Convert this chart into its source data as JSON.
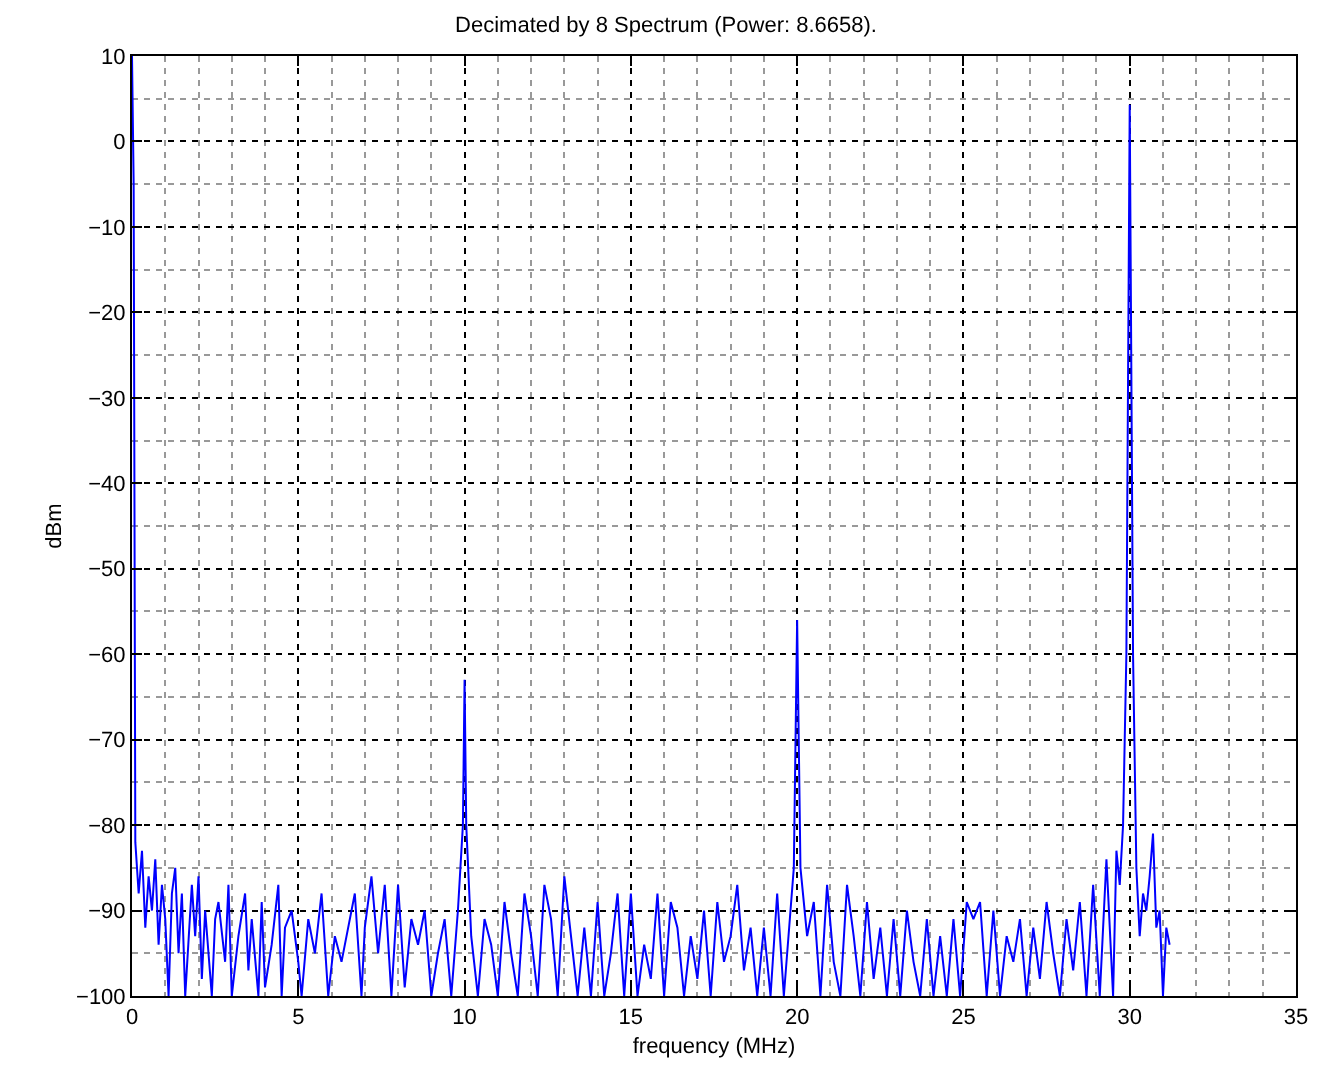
{
  "chart_data": {
    "type": "line",
    "title": "Decimated by 8 Spectrum (Power: 8.6658).",
    "xlabel": "frequency (MHz)",
    "ylabel": "dBm",
    "xlim": [
      0,
      35
    ],
    "xticks": [
      0,
      5,
      10,
      15,
      20,
      25,
      30,
      35
    ],
    "ylim": [
      -100,
      10
    ],
    "yticks": [
      -100,
      -90,
      -80,
      -70,
      -60,
      -50,
      -40,
      -30,
      -20,
      -10,
      0,
      10
    ],
    "grid": true,
    "line_style": "solid",
    "marker": "none",
    "series": [
      {
        "color": "#0000ff",
        "x": [
          0,
          0.05,
          0.1,
          0.2,
          0.3,
          0.4,
          0.5,
          0.6,
          0.7,
          0.8,
          0.9,
          1.0,
          1.1,
          1.2,
          1.3,
          1.4,
          1.5,
          1.6,
          1.8,
          1.9,
          2.0,
          2.1,
          2.2,
          2.4,
          2.5,
          2.6,
          2.8,
          2.9,
          3.0,
          3.2,
          3.4,
          3.5,
          3.6,
          3.8,
          3.9,
          4.0,
          4.2,
          4.4,
          4.5,
          4.6,
          4.8,
          5.0,
          5.1,
          5.3,
          5.5,
          5.7,
          5.9,
          6.1,
          6.3,
          6.5,
          6.7,
          6.9,
          7.0,
          7.2,
          7.4,
          7.6,
          7.8,
          8.0,
          8.2,
          8.4,
          8.6,
          8.8,
          9.0,
          9.2,
          9.4,
          9.6,
          9.8,
          9.95,
          10.0,
          10.05,
          10.2,
          10.4,
          10.6,
          10.8,
          11.0,
          11.2,
          11.4,
          11.6,
          11.8,
          12.0,
          12.2,
          12.4,
          12.6,
          12.8,
          13.0,
          13.2,
          13.4,
          13.6,
          13.8,
          14.0,
          14.2,
          14.4,
          14.6,
          14.8,
          15.0,
          15.2,
          15.4,
          15.6,
          15.8,
          16.0,
          16.2,
          16.4,
          16.6,
          16.8,
          17.0,
          17.2,
          17.4,
          17.6,
          17.8,
          18.0,
          18.2,
          18.4,
          18.6,
          18.8,
          19.0,
          19.2,
          19.4,
          19.6,
          19.9,
          20.0,
          20.1,
          20.3,
          20.5,
          20.7,
          20.9,
          21.1,
          21.3,
          21.5,
          21.7,
          21.9,
          22.1,
          22.3,
          22.5,
          22.7,
          22.9,
          23.1,
          23.3,
          23.5,
          23.7,
          23.9,
          24.1,
          24.3,
          24.5,
          24.7,
          24.9,
          25.1,
          25.3,
          25.5,
          25.7,
          25.9,
          26.1,
          26.3,
          26.5,
          26.7,
          26.9,
          27.1,
          27.3,
          27.5,
          27.7,
          27.9,
          28.1,
          28.3,
          28.5,
          28.7,
          28.9,
          29.1,
          29.3,
          29.5,
          29.6,
          29.7,
          29.8,
          29.9,
          30.0,
          30.1,
          30.2,
          30.3,
          30.4,
          30.5,
          30.6,
          30.7,
          30.8,
          30.9,
          31.0,
          31.1,
          31.2
        ],
        "values": [
          10,
          -5,
          -82,
          -88,
          -83,
          -92,
          -86,
          -90,
          -84,
          -94,
          -87,
          -91,
          -100,
          -88,
          -85,
          -95,
          -88,
          -100,
          -87,
          -93,
          -86,
          -98,
          -90,
          -100,
          -91,
          -89,
          -96,
          -87,
          -100,
          -93,
          -88,
          -97,
          -91,
          -100,
          -89,
          -99,
          -94,
          -87,
          -100,
          -92,
          -90,
          -96,
          -100,
          -91,
          -95,
          -88,
          -100,
          -93,
          -96,
          -92,
          -88,
          -100,
          -92,
          -86,
          -95,
          -87,
          -100,
          -87,
          -99,
          -91,
          -94,
          -90,
          -100,
          -95,
          -91,
          -100,
          -90,
          -80,
          -63,
          -80,
          -93,
          -100,
          -91,
          -94,
          -100,
          -89,
          -95,
          -100,
          -88,
          -93,
          -100,
          -87,
          -91,
          -100,
          -86,
          -93,
          -100,
          -92,
          -100,
          -89,
          -100,
          -95,
          -88,
          -100,
          -88,
          -100,
          -94,
          -98,
          -88,
          -100,
          -89,
          -92,
          -100,
          -93,
          -98,
          -90,
          -100,
          -89,
          -96,
          -93,
          -87,
          -97,
          -92,
          -100,
          -92,
          -100,
          -88,
          -100,
          -85,
          -56,
          -85,
          -93,
          -89,
          -100,
          -87,
          -96,
          -100,
          -87,
          -93,
          -100,
          -89,
          -98,
          -92,
          -100,
          -91,
          -100,
          -90,
          -96,
          -100,
          -91,
          -100,
          -93,
          -100,
          -91,
          -100,
          -89,
          -91,
          -89,
          -100,
          -90,
          -100,
          -93,
          -96,
          -91,
          -100,
          -92,
          -98,
          -89,
          -95,
          -100,
          -91,
          -97,
          -89,
          -100,
          -87,
          -100,
          -84,
          -100,
          -83,
          -87,
          -80,
          -60,
          4.3,
          -60,
          -85,
          -93,
          -88,
          -90,
          -86,
          -81,
          -92,
          -90,
          -100,
          -92,
          -94
        ]
      }
    ]
  }
}
